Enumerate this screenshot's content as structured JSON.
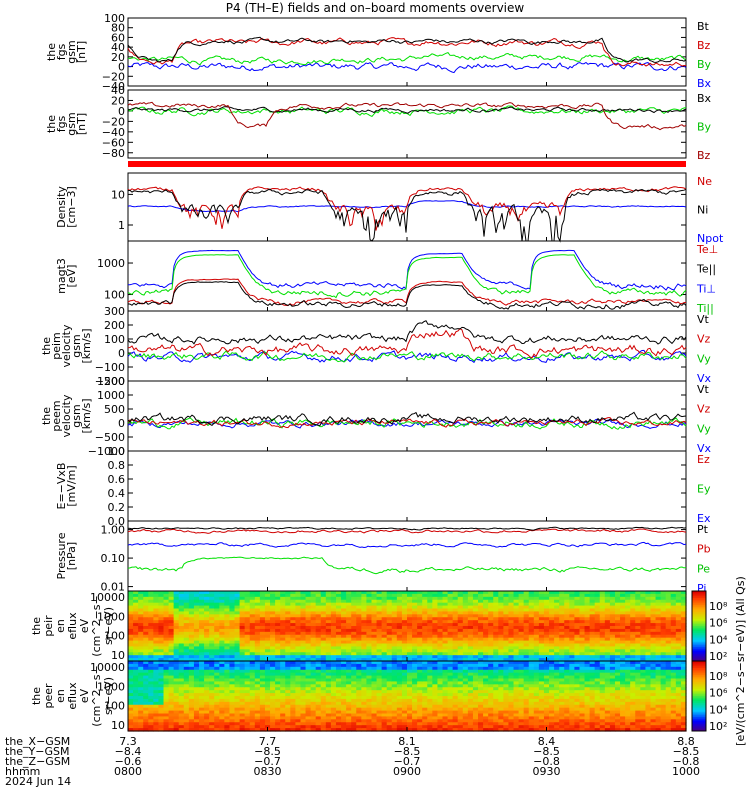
{
  "title": "P4 (TH–E) fields and on–board moments overview",
  "colors": {
    "black": "#000000",
    "red": "#d00000",
    "green": "#00e000",
    "blue": "#0000ff",
    "darkred": "#a00000",
    "bar_red": "#ff0000"
  },
  "chart_data": [
    {
      "type": "line",
      "id": "fgs_gsm",
      "ylabel": [
        "the",
        "fgs",
        "gsm",
        "[nT]"
      ],
      "yticks": [
        "100",
        "80",
        "60",
        "40",
        "20",
        "0",
        "−20",
        "−40"
      ],
      "ylim": [
        -40,
        100
      ],
      "legend": [
        {
          "label": "Bt",
          "color": "#000000"
        },
        {
          "label": "Bz",
          "color": "#d00000"
        },
        {
          "label": "By",
          "color": "#00c000"
        },
        {
          "label": "Bx",
          "color": "#0000ff"
        }
      ]
    },
    {
      "type": "line",
      "id": "fgs_gsm2",
      "ylabel": [
        "the",
        "fgs",
        "gsm",
        "[nT]"
      ],
      "yticks": [
        "40",
        "20",
        "0",
        "−20",
        "−40",
        "−60",
        "−80"
      ],
      "ylim": [
        -90,
        40
      ],
      "legend": [
        {
          "label": "Bx",
          "color": "#000000"
        },
        {
          "label": "By",
          "color": "#00c000"
        },
        {
          "label": "Bz",
          "color": "#a00000"
        }
      ]
    },
    {
      "type": "line",
      "id": "density",
      "ylabel": [
        "Density",
        "[cm−3]"
      ],
      "yticks": [
        "10",
        "1"
      ],
      "scale": "log",
      "ylim": [
        0.3,
        50
      ],
      "legend": [
        {
          "label": "Ne",
          "color": "#d00000"
        },
        {
          "label": "Ni",
          "color": "#000000"
        },
        {
          "label": "Npot",
          "color": "#0000ff"
        }
      ]
    },
    {
      "type": "line",
      "id": "temperature",
      "ylabel": [
        "magt3",
        "[eV]"
      ],
      "yticks": [
        "1000",
        "100"
      ],
      "scale": "log",
      "ylim": [
        30,
        5000
      ],
      "legend": [
        {
          "label": "Te⊥",
          "color": "#d00000"
        },
        {
          "label": "Te||",
          "color": "#000000"
        },
        {
          "label": "Ti⊥",
          "color": "#0000ff"
        },
        {
          "label": "Ti||",
          "color": "#00c000"
        }
      ]
    },
    {
      "type": "line",
      "id": "peim_velocity",
      "ylabel": [
        "the",
        "peim",
        "velocity",
        "gsm",
        "[km/s]"
      ],
      "yticks": [
        "300",
        "200",
        "100",
        "0",
        "−100",
        "−200"
      ],
      "ylim": [
        -200,
        300
      ],
      "legend": [
        {
          "label": "Vt",
          "color": "#000000"
        },
        {
          "label": "Vz",
          "color": "#d00000"
        },
        {
          "label": "Vy",
          "color": "#00c000"
        },
        {
          "label": "Vx",
          "color": "#0000ff"
        }
      ]
    },
    {
      "type": "line",
      "id": "peem_velocity",
      "ylabel": [
        "the",
        "peem",
        "velocity",
        "gsm",
        "[km/s]"
      ],
      "yticks": [
        "1500",
        "1000",
        "500",
        "0",
        "−500",
        "−1000"
      ],
      "ylim": [
        -1000,
        1500
      ],
      "legend": [
        {
          "label": "Vt",
          "color": "#000000"
        },
        {
          "label": "Vz",
          "color": "#d00000"
        },
        {
          "label": "Vy",
          "color": "#00c000"
        },
        {
          "label": "Vx",
          "color": "#0000ff"
        }
      ]
    },
    {
      "type": "line",
      "id": "efield",
      "ylabel": [
        "E=−VxB",
        "[mV/m]"
      ],
      "yticks": [
        "1.0",
        "0.8",
        "0.6",
        "0.4",
        "0.2",
        "0.0"
      ],
      "ylim": [
        0,
        1
      ],
      "legend": [
        {
          "label": "Ez",
          "color": "#d00000"
        },
        {
          "label": "Ey",
          "color": "#00c000"
        },
        {
          "label": "Ex",
          "color": "#0000ff"
        }
      ]
    },
    {
      "type": "line",
      "id": "pressure",
      "ylabel": [
        "Pressure",
        "[nPa]"
      ],
      "yticks": [
        "1.00",
        "0.10",
        "0.01"
      ],
      "scale": "log",
      "ylim": [
        0.007,
        2
      ],
      "legend": [
        {
          "label": "Pt",
          "color": "#000000"
        },
        {
          "label": "Pb",
          "color": "#d00000"
        },
        {
          "label": "Pe",
          "color": "#00c000"
        },
        {
          "label": "Pi",
          "color": "#0000ff"
        }
      ]
    },
    {
      "type": "heatmap",
      "id": "peir_eflux",
      "ylabel": [
        "the",
        "peir",
        "en",
        "eflux",
        "eV",
        "(cm^2−s−",
        "sr−eV)"
      ],
      "yticks": [
        "10000",
        "1000",
        "100",
        "10"
      ],
      "scale": "log"
    },
    {
      "type": "heatmap",
      "id": "peer_eflux",
      "ylabel": [
        "the",
        "peer",
        "en",
        "eflux",
        "eV",
        "(cm^2−s−",
        "sr−eV)"
      ],
      "yticks": [
        "10000",
        "1000",
        "100",
        "10"
      ],
      "scale": "log"
    }
  ],
  "colorbar": {
    "ticks_top": [
      "10⁸",
      "10⁶",
      "10⁴",
      "10²"
    ],
    "ticks_bottom": [
      "10⁸",
      "10⁶",
      "10⁴",
      "10²"
    ],
    "label": "[eV/(cm^2−s−sr−eV)] (All Qs)"
  },
  "footer": {
    "rows": [
      {
        "label": "the_X−GSM",
        "values": [
          "7.3",
          "7.7",
          "8.1",
          "8.4",
          "8.8"
        ]
      },
      {
        "label": "the_Y−GSM",
        "values": [
          "−8.4",
          "−8.5",
          "−8.5",
          "−8.5",
          "−8.5"
        ]
      },
      {
        "label": "the_Z−GSM",
        "values": [
          "−0.6",
          "−0.7",
          "−0.7",
          "−0.8",
          "−0.8"
        ]
      },
      {
        "label": "hhmm",
        "values": [
          "0800",
          "0830",
          "0900",
          "0930",
          "1000"
        ]
      }
    ],
    "date": "2024 Jun 14"
  }
}
